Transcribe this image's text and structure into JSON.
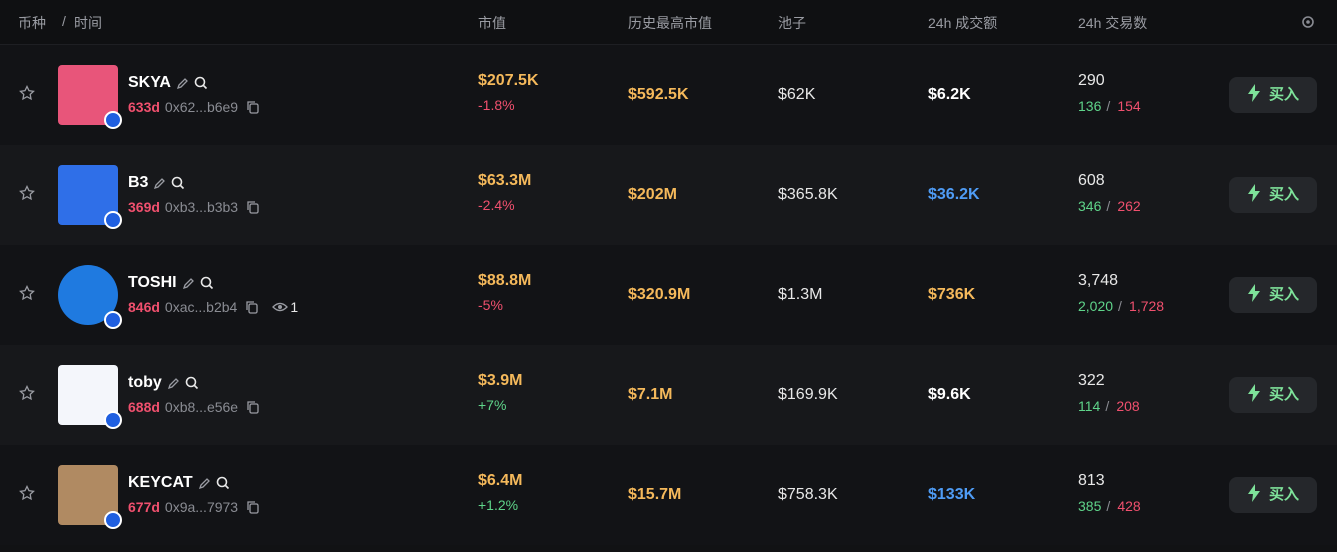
{
  "header": {
    "coin": "币种",
    "separator": "/",
    "time": "时间",
    "mcap": "市值",
    "ath": "历史最高市值",
    "pool": "池子",
    "volume": "24h 成交额",
    "txns": "24h 交易数"
  },
  "rows": [
    {
      "name": "SKYA",
      "age": "633d",
      "address": "0x62...b6e9",
      "mcap": "$207.5K",
      "change": "-1.8%",
      "ath": "$592.5K",
      "pool": "$62K",
      "volume": "$6.2K",
      "volume_color": "#ffffff",
      "txns": "290",
      "buys": "136",
      "separator": "/",
      "sells": "154",
      "button": "买入",
      "avatar_color": "#e8557a"
    },
    {
      "name": "B3",
      "age": "369d",
      "address": "0xb3...b3b3",
      "mcap": "$63.3M",
      "change": "-2.4%",
      "ath": "$202M",
      "pool": "$365.8K",
      "volume": "$36.2K",
      "volume_color": "#4f9cf5",
      "txns": "608",
      "buys": "346",
      "separator": "/",
      "sells": "262",
      "button": "买入",
      "avatar_color": "#2f6fe8"
    },
    {
      "name": "TOSHI",
      "age": "846d",
      "address": "0xac...b2b4",
      "watchers": "1",
      "mcap": "$88.8M",
      "change": "-5%",
      "ath": "$320.9M",
      "pool": "$1.3M",
      "volume": "$736K",
      "volume_color": "#f5b95b",
      "txns": "3,748",
      "buys": "2,020",
      "separator": "/",
      "sells": "1,728",
      "button": "买入",
      "avatar_color": "#1f7ae0"
    },
    {
      "name": "toby",
      "age": "688d",
      "address": "0xb8...e56e",
      "mcap": "$3.9M",
      "change": "+7%",
      "ath": "$7.1M",
      "pool": "$169.9K",
      "volume": "$9.6K",
      "volume_color": "#ffffff",
      "txns": "322",
      "buys": "114",
      "separator": "/",
      "sells": "208",
      "button": "买入",
      "avatar_color": "#f4f6fb"
    },
    {
      "name": "KEYCAT",
      "age": "677d",
      "address": "0x9a...7973",
      "mcap": "$6.4M",
      "change": "+1.2%",
      "ath": "$15.7M",
      "pool": "$758.3K",
      "volume": "$133K",
      "volume_color": "#4f9cf5",
      "txns": "813",
      "buys": "385",
      "separator": "/",
      "sells": "428",
      "button": "买入",
      "avatar_color": "#b08a62"
    }
  ]
}
